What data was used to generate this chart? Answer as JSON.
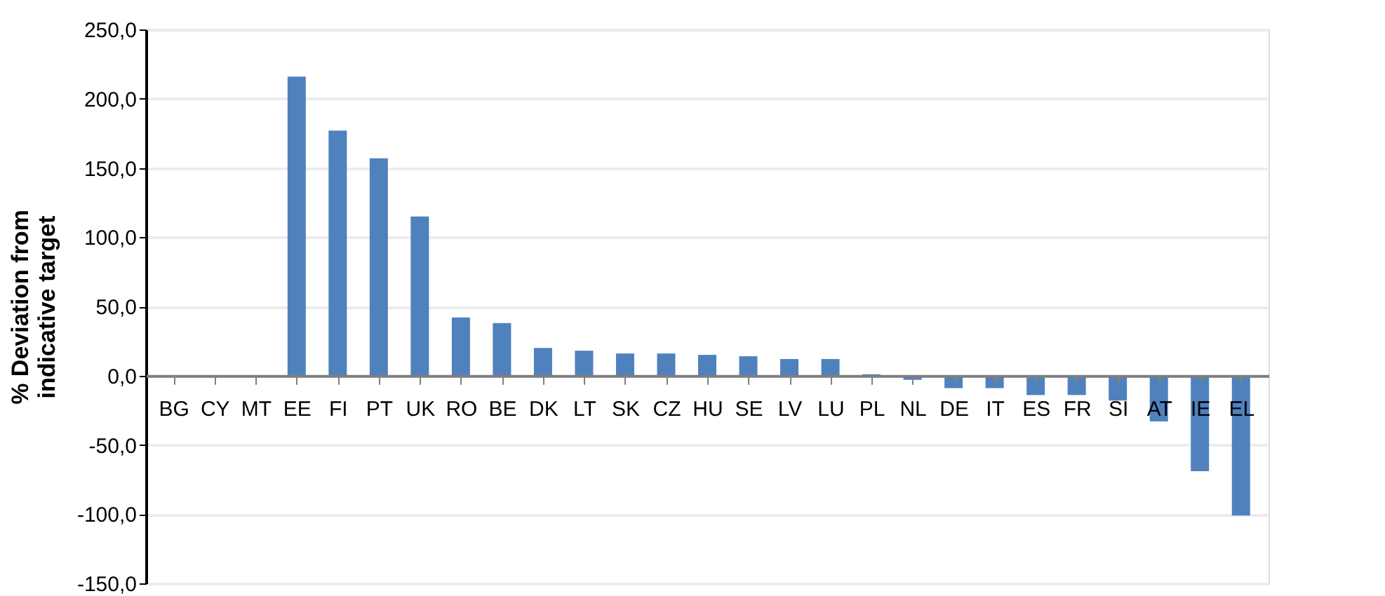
{
  "chart_data": {
    "type": "bar",
    "ylabel": "% Deviation from\nindicative target",
    "categories": [
      "BG",
      "CY",
      "MT",
      "EE",
      "FI",
      "PT",
      "UK",
      "RO",
      "BE",
      "DK",
      "LT",
      "SK",
      "CZ",
      "HU",
      "SE",
      "LV",
      "LU",
      "PL",
      "NL",
      "DE",
      "IT",
      "ES",
      "FR",
      "SI",
      "AT",
      "IE",
      "EL"
    ],
    "values": [
      0,
      0,
      0,
      216,
      177,
      157,
      115,
      42,
      38,
      20,
      18,
      16,
      16,
      15,
      14,
      12,
      12,
      1,
      -3,
      -9,
      -9,
      -14,
      -14,
      -18,
      -33,
      -69,
      -101
    ],
    "color": "#4f81bd",
    "ylim": [
      -150,
      250
    ],
    "yticks": [
      {
        "value": -150,
        "label": "-150,0"
      },
      {
        "value": -100,
        "label": "-100,0"
      },
      {
        "value": -50,
        "label": "-50,0"
      },
      {
        "value": 0,
        "label": "0,0"
      },
      {
        "value": 50,
        "label": "50,0"
      },
      {
        "value": 100,
        "label": "100,0"
      },
      {
        "value": 150,
        "label": "150,0"
      },
      {
        "value": 200,
        "label": "200,0"
      },
      {
        "value": 250,
        "label": "250,0"
      }
    ],
    "grid": "y"
  }
}
